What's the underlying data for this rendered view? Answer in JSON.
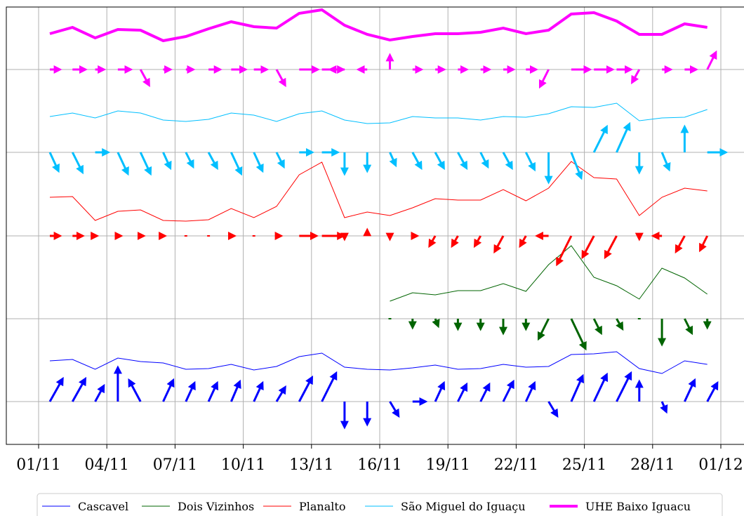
{
  "chart_data": {
    "type": "line",
    "x": [
      "01/11",
      "02/11",
      "03/11",
      "04/11",
      "05/11",
      "06/11",
      "07/11",
      "08/11",
      "09/11",
      "10/11",
      "11/11",
      "12/11",
      "13/11",
      "14/11",
      "15/11",
      "16/11",
      "17/11",
      "18/11",
      "19/11",
      "20/11",
      "21/11",
      "22/11",
      "23/11",
      "24/11",
      "25/11",
      "26/11",
      "27/11",
      "28/11",
      "29/11",
      "30/11"
    ],
    "x_ticks": [
      "01/11",
      "04/11",
      "07/11",
      "10/11",
      "13/11",
      "16/11",
      "19/11",
      "22/11",
      "25/11",
      "28/11",
      "01/12"
    ],
    "y_ticks": [],
    "grid": true,
    "legend_position": "bottom-center",
    "series": [
      {
        "name": "Cascavel",
        "color": "#0000ff",
        "line_width": 1,
        "values": [
          0.38,
          0.4,
          0.26,
          0.42,
          0.37,
          0.35,
          0.26,
          0.27,
          0.33,
          0.25,
          0.3,
          0.44,
          0.49,
          0.29,
          0.26,
          0.25,
          0.28,
          0.32,
          0.26,
          0.27,
          0.33,
          0.29,
          0.3,
          0.47,
          0.48,
          0.51,
          0.27,
          0.2,
          0.38,
          0.33
        ],
        "arrows": [
          [
            1.5,
            0
          ],
          [
            1.6,
            0
          ],
          [
            1.0,
            0
          ],
          [
            2.3,
            0
          ],
          [
            1.6,
            0
          ],
          [
            1.6,
            0
          ],
          [
            1.3,
            0
          ],
          [
            1.2,
            0
          ],
          [
            1.3,
            0
          ],
          [
            1.5,
            0
          ],
          [
            1.2,
            0
          ],
          [
            1.0,
            0
          ],
          [
            1.8,
            0
          ],
          [
            2.0,
            0
          ],
          [
            1.8,
            0
          ],
          [
            1.6,
            0
          ],
          [
            0.9,
            0
          ],
          [
            1.0,
            0
          ],
          [
            1.3,
            0
          ],
          [
            1.2,
            0
          ],
          [
            1.2,
            0
          ],
          [
            1.5,
            0
          ],
          [
            1.3,
            0
          ],
          [
            0.8,
            0
          ],
          [
            2.0,
            0
          ],
          [
            2.0,
            0
          ],
          [
            2.0,
            0
          ],
          [
            1.5,
            0
          ],
          [
            0.7,
            0
          ],
          [
            1.6,
            0
          ]
        ]
      },
      {
        "name": "Dois Vizinhos",
        "color": "#006400",
        "line_width": 1,
        "values": [
          null,
          null,
          null,
          null,
          null,
          null,
          null,
          null,
          null,
          null,
          null,
          null,
          null,
          null,
          null,
          0.05,
          0.17,
          0.14,
          0.2,
          0.2,
          0.3,
          0.19,
          0.57,
          0.84,
          0.39,
          0.27,
          0.08,
          0.52,
          0.38,
          0.15
        ],
        "arrows": [
          [
            0,
            0
          ],
          [
            0,
            0
          ],
          [
            0,
            0
          ],
          [
            0,
            0
          ],
          [
            0,
            0
          ],
          [
            0,
            0
          ],
          [
            0,
            0
          ],
          [
            0,
            0
          ],
          [
            0,
            0
          ],
          [
            0,
            0
          ],
          [
            0,
            0
          ],
          [
            0,
            0
          ],
          [
            0,
            0
          ],
          [
            0,
            0
          ],
          [
            0,
            0
          ],
          [
            0.2,
            0
          ],
          [
            0.6,
            0
          ],
          [
            0.5,
            0
          ],
          [
            0.8,
            0
          ],
          [
            0.8,
            0
          ],
          [
            1.1,
            0
          ],
          [
            0.8,
            0
          ],
          [
            1.6,
            0
          ],
          [
            2.2,
            0
          ],
          [
            1.1,
            0
          ],
          [
            0.9,
            0
          ],
          [
            0.3,
            0
          ],
          [
            1.9,
            0
          ],
          [
            1.1,
            0
          ],
          [
            0.6,
            0
          ]
        ]
      },
      {
        "name": "Planalto",
        "color": "#ff0000",
        "line_width": 1,
        "values": [
          0.35,
          0.36,
          0.02,
          0.15,
          0.17,
          0.02,
          0.01,
          0.03,
          0.19,
          0.06,
          0.22,
          0.67,
          0.85,
          0.06,
          0.14,
          0.09,
          0.2,
          0.33,
          0.31,
          0.31,
          0.46,
          0.3,
          0.48,
          0.86,
          0.63,
          0.61,
          0.09,
          0.35,
          0.48,
          0.44
        ],
        "arrows": [
          [
            0.7,
            0
          ],
          [
            0.7,
            0
          ],
          [
            0.6,
            0
          ],
          [
            0.3,
            0
          ],
          [
            0.3,
            0
          ],
          [
            0.2,
            0
          ],
          [
            0.1,
            0
          ],
          [
            0.1,
            0
          ],
          [
            0.3,
            0
          ],
          [
            0.3,
            0
          ],
          [
            0.3,
            0
          ],
          [
            1.2,
            0
          ],
          [
            1.4,
            0
          ],
          [
            0.2,
            0
          ],
          [
            0.4,
            0
          ],
          [
            0.2,
            0
          ],
          [
            0.3,
            0
          ],
          [
            0.6,
            0
          ],
          [
            0.6,
            0
          ],
          [
            0.6,
            0
          ],
          [
            0.8,
            0
          ],
          [
            0.6,
            0
          ],
          [
            0.7,
            0
          ],
          [
            1.6,
            0
          ],
          [
            1.3,
            0
          ],
          [
            1.3,
            0
          ],
          [
            0.2,
            0
          ],
          [
            0.6,
            0
          ],
          [
            0.9,
            0
          ],
          [
            0.9,
            0
          ]
        ]
      },
      {
        "name": "São Miguel do Iguaçu",
        "color": "#00bfff",
        "line_width": 1,
        "values": [
          0.31,
          0.36,
          0.29,
          0.39,
          0.36,
          0.26,
          0.24,
          0.27,
          0.36,
          0.33,
          0.24,
          0.35,
          0.39,
          0.26,
          0.21,
          0.22,
          0.31,
          0.29,
          0.29,
          0.26,
          0.31,
          0.3,
          0.35,
          0.45,
          0.44,
          0.5,
          0.25,
          0.29,
          0.3,
          0.41
        ],
        "arrows": [
          [
            1.0,
            0
          ],
          [
            1.3,
            0
          ],
          [
            0.8,
            0
          ],
          [
            1.3,
            0
          ],
          [
            1.3,
            0
          ],
          [
            1.0,
            0
          ],
          [
            0.9,
            0
          ],
          [
            1.0,
            0
          ],
          [
            1.3,
            0
          ],
          [
            1.2,
            0
          ],
          [
            0.9,
            0
          ],
          [
            0.9,
            0
          ],
          [
            1.0,
            0
          ],
          [
            1.1,
            0
          ],
          [
            1.0,
            0
          ],
          [
            0.7,
            0
          ],
          [
            1.0,
            0
          ],
          [
            1.0,
            0
          ],
          [
            1.0,
            0
          ],
          [
            0.9,
            0
          ],
          [
            1.0,
            0
          ],
          [
            1.1,
            0
          ],
          [
            1.5,
            0
          ],
          [
            1.4,
            0
          ],
          [
            1.4,
            0
          ],
          [
            1.6,
            0
          ],
          [
            1.1,
            0
          ],
          [
            1.0,
            0
          ],
          [
            1.2,
            0
          ],
          [
            1.0,
            0
          ]
        ]
      },
      {
        "name": "UHE Baixo Iguacu",
        "color": "#ff00ff",
        "line_width": 4,
        "values": [
          0.31,
          0.4,
          0.25,
          0.37,
          0.36,
          0.21,
          0.27,
          0.38,
          0.48,
          0.41,
          0.39,
          0.6,
          0.65,
          0.43,
          0.3,
          0.22,
          0.27,
          0.31,
          0.31,
          0.33,
          0.39,
          0.31,
          0.36,
          0.59,
          0.61,
          0.49,
          0.3,
          0.3,
          0.45,
          0.4
        ],
        "arrows": [
          [
            0.6,
            0
          ],
          [
            0.7,
            0
          ],
          [
            0.5,
            0
          ],
          [
            0.6,
            0
          ],
          [
            0.9,
            0
          ],
          [
            0.4,
            0
          ],
          [
            0.5,
            0
          ],
          [
            0.7,
            0
          ],
          [
            0.8,
            0
          ],
          [
            0.7,
            0
          ],
          [
            1.0,
            0
          ],
          [
            1.0,
            0
          ],
          [
            1.1,
            0
          ],
          [
            0.7,
            0
          ],
          [
            0.5,
            0
          ],
          [
            0.7,
            0
          ],
          [
            0.5,
            0
          ],
          [
            0.6,
            0
          ],
          [
            0.6,
            0
          ],
          [
            0.6,
            0
          ],
          [
            0.7,
            0
          ],
          [
            0.6,
            0
          ],
          [
            1.0,
            0
          ],
          [
            1.0,
            0
          ],
          [
            1.0,
            0
          ],
          [
            0.8,
            0
          ],
          [
            0.7,
            0
          ],
          [
            0.6,
            0
          ],
          [
            0.7,
            0
          ],
          [
            1.0,
            0
          ]
        ]
      }
    ]
  }
}
